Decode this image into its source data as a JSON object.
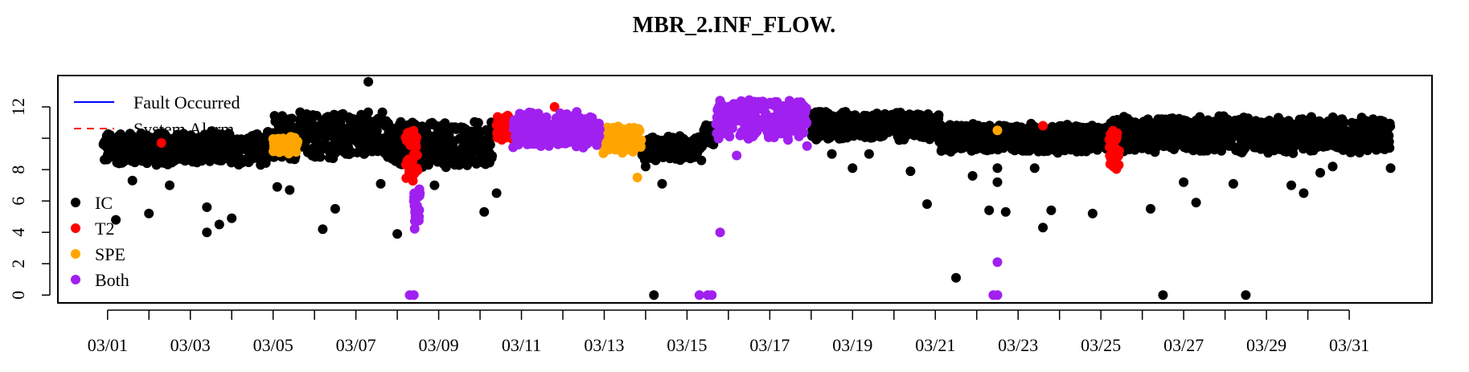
{
  "chart_data": {
    "type": "scatter",
    "title": "MBR_2.INF_FLOW.",
    "xlabel": "",
    "ylabel": "",
    "x_tick_labels": [
      "03/01",
      "03/03",
      "03/05",
      "03/07",
      "03/09",
      "03/11",
      "03/13",
      "03/15",
      "03/17",
      "03/19",
      "03/21",
      "03/23",
      "03/25",
      "03/27",
      "03/29",
      "03/31"
    ],
    "x_ticks_days": [
      1,
      3,
      5,
      7,
      9,
      11,
      13,
      15,
      17,
      19,
      21,
      23,
      25,
      27,
      29,
      31
    ],
    "xlim_days": [
      -0.2,
      33.0
    ],
    "y_ticks": [
      0,
      2,
      4,
      6,
      8,
      12
    ],
    "ylim": [
      -0.5,
      14.0
    ],
    "grid": false,
    "legend_placement": "left",
    "lines_legend": [
      {
        "name": "Fault Occurred",
        "color": "#0000ff",
        "style": "solid"
      },
      {
        "name": "System Alarm",
        "color": "#ff0000",
        "style": "dashed"
      }
    ],
    "points_legend": [
      {
        "name": "IC",
        "color": "#000000"
      },
      {
        "name": "T2",
        "color": "#ff0000"
      },
      {
        "name": "SPE",
        "color": "#ffa500"
      },
      {
        "name": "Both",
        "color": "#a020f0"
      }
    ],
    "series": [
      {
        "name": "IC",
        "color": "#000000",
        "bands": [
          {
            "x": [
              0.9,
              5.0
            ],
            "lo": 8.2,
            "hi": 10.5
          },
          {
            "x": [
              5.0,
              7.8
            ],
            "lo": 8.5,
            "hi": 11.8
          },
          {
            "x": [
              7.8,
              10.3
            ],
            "lo": 8.0,
            "hi": 11.2
          },
          {
            "x": [
              13.9,
              15.4
            ],
            "lo": 8.5,
            "hi": 10.2
          },
          {
            "x": [
              15.4,
              15.7
            ],
            "lo": 9.5,
            "hi": 11.0
          },
          {
            "x": [
              18.0,
              21.1
            ],
            "lo": 9.8,
            "hi": 11.8
          },
          {
            "x": [
              21.1,
              25.3
            ],
            "lo": 9.0,
            "hi": 11.0
          },
          {
            "x": [
              25.3,
              32.0
            ],
            "lo": 9.0,
            "hi": 11.5
          }
        ],
        "points": [
          {
            "x": 1.2,
            "y": 4.8
          },
          {
            "x": 1.6,
            "y": 7.3
          },
          {
            "x": 2.0,
            "y": 5.2
          },
          {
            "x": 2.5,
            "y": 7.0
          },
          {
            "x": 3.4,
            "y": 5.6
          },
          {
            "x": 3.4,
            "y": 4.0
          },
          {
            "x": 3.7,
            "y": 4.5
          },
          {
            "x": 4.0,
            "y": 4.9
          },
          {
            "x": 4.7,
            "y": 8.3
          },
          {
            "x": 5.1,
            "y": 6.9
          },
          {
            "x": 5.4,
            "y": 6.7
          },
          {
            "x": 6.2,
            "y": 4.2
          },
          {
            "x": 6.5,
            "y": 5.5
          },
          {
            "x": 7.3,
            "y": 13.6
          },
          {
            "x": 7.6,
            "y": 7.1
          },
          {
            "x": 8.0,
            "y": 3.9
          },
          {
            "x": 8.9,
            "y": 7.0
          },
          {
            "x": 10.1,
            "y": 5.3
          },
          {
            "x": 10.4,
            "y": 6.5
          },
          {
            "x": 14.0,
            "y": 8.2
          },
          {
            "x": 14.2,
            "y": 0.0
          },
          {
            "x": 14.4,
            "y": 7.1
          },
          {
            "x": 18.5,
            "y": 9.0
          },
          {
            "x": 19.0,
            "y": 8.1
          },
          {
            "x": 19.4,
            "y": 9.0
          },
          {
            "x": 20.4,
            "y": 7.9
          },
          {
            "x": 20.8,
            "y": 5.8
          },
          {
            "x": 21.5,
            "y": 1.1
          },
          {
            "x": 21.9,
            "y": 7.6
          },
          {
            "x": 22.3,
            "y": 5.4
          },
          {
            "x": 22.5,
            "y": 8.1
          },
          {
            "x": 22.5,
            "y": 7.2
          },
          {
            "x": 22.7,
            "y": 5.3
          },
          {
            "x": 23.4,
            "y": 8.1
          },
          {
            "x": 23.6,
            "y": 4.3
          },
          {
            "x": 23.8,
            "y": 5.4
          },
          {
            "x": 24.8,
            "y": 5.2
          },
          {
            "x": 26.2,
            "y": 5.5
          },
          {
            "x": 26.5,
            "y": 0.0
          },
          {
            "x": 27.0,
            "y": 7.2
          },
          {
            "x": 27.3,
            "y": 5.9
          },
          {
            "x": 28.2,
            "y": 7.1
          },
          {
            "x": 28.5,
            "y": 0.0
          },
          {
            "x": 29.6,
            "y": 7.0
          },
          {
            "x": 29.9,
            "y": 6.5
          },
          {
            "x": 30.3,
            "y": 7.8
          },
          {
            "x": 30.6,
            "y": 8.2
          },
          {
            "x": 32.0,
            "y": 8.1
          }
        ]
      },
      {
        "name": "T2",
        "color": "#ff0000",
        "bands": [
          {
            "x": [
              8.2,
              8.5
            ],
            "lo": 6.8,
            "hi": 10.8
          },
          {
            "x": [
              10.4,
              10.8
            ],
            "lo": 9.5,
            "hi": 11.5
          },
          {
            "x": [
              25.2,
              25.45
            ],
            "lo": 7.9,
            "hi": 10.8
          }
        ],
        "points": [
          {
            "x": 2.3,
            "y": 9.7
          },
          {
            "x": 11.8,
            "y": 12.0
          },
          {
            "x": 23.6,
            "y": 10.8
          }
        ]
      },
      {
        "name": "SPE",
        "color": "#ffa500",
        "bands": [
          {
            "x": [
              5.0,
              5.6
            ],
            "lo": 9.0,
            "hi": 10.2
          },
          {
            "x": [
              12.9,
              13.9
            ],
            "lo": 9.0,
            "hi": 11.0
          }
        ],
        "points": [
          {
            "x": 13.8,
            "y": 7.5
          },
          {
            "x": 22.5,
            "y": 10.5
          }
        ]
      },
      {
        "name": "Both",
        "color": "#a020f0",
        "bands": [
          {
            "x": [
              8.4,
              8.55
            ],
            "lo": 3.9,
            "hi": 7.2
          },
          {
            "x": [
              10.8,
              12.9
            ],
            "lo": 9.3,
            "hi": 11.8
          },
          {
            "x": [
              15.7,
              17.9
            ],
            "lo": 9.8,
            "hi": 12.7
          }
        ],
        "points": [
          {
            "x": 8.3,
            "y": 0.0
          },
          {
            "x": 8.4,
            "y": 0.0
          },
          {
            "x": 15.3,
            "y": 0.0
          },
          {
            "x": 15.5,
            "y": 0.0
          },
          {
            "x": 15.6,
            "y": 0.0
          },
          {
            "x": 15.8,
            "y": 4.0
          },
          {
            "x": 16.2,
            "y": 8.9
          },
          {
            "x": 17.9,
            "y": 9.5
          },
          {
            "x": 22.4,
            "y": 0.0
          },
          {
            "x": 22.5,
            "y": 0.0
          },
          {
            "x": 22.5,
            "y": 2.1
          }
        ]
      }
    ]
  }
}
